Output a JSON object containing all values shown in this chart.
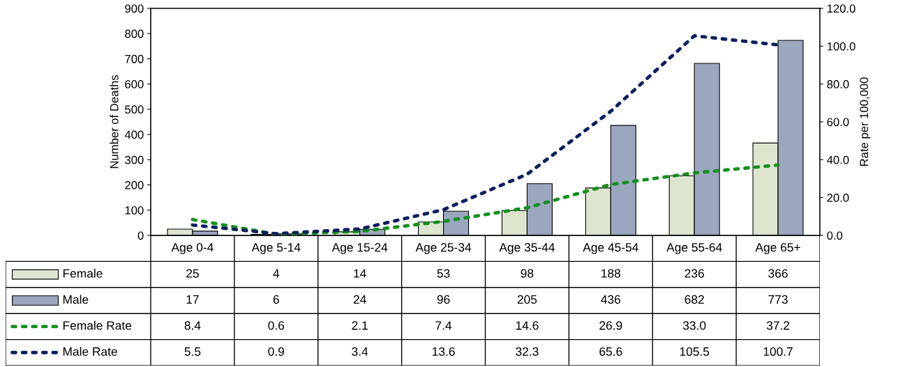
{
  "chart_data": {
    "type": "bar",
    "categories": [
      "Age 0-4",
      "Age 5-14",
      "Age 15-24",
      "Age 25-34",
      "Age 35-44",
      "Age 45-54",
      "Age 55-64",
      "Age 65+"
    ],
    "ylabel": "Number of Deaths",
    "y2label": "Rate per 100,000",
    "ylim": [
      0,
      900
    ],
    "yticks": [
      0,
      100,
      200,
      300,
      400,
      500,
      600,
      700,
      800,
      900
    ],
    "y2lim": [
      0,
      120
    ],
    "y2ticks": [
      {
        "value": 0,
        "label": "0.0"
      },
      {
        "value": 20,
        "label": "20.0"
      },
      {
        "value": 40,
        "label": "40.0"
      },
      {
        "value": 60,
        "label": "60.0"
      },
      {
        "value": 80,
        "label": "80.0"
      },
      {
        "value": 100,
        "label": "100.0"
      },
      {
        "value": 120,
        "label": "120.0"
      }
    ],
    "data_labels": true,
    "grid": false,
    "legend": "left",
    "line_style": "dotted",
    "marker": "none",
    "series": [
      {
        "name": "Female",
        "color": "#dde5cf",
        "values": [
          25,
          4,
          14,
          53,
          98,
          188,
          236,
          366
        ],
        "value_labels": [
          "25",
          "4",
          "14",
          "53",
          "98",
          "188",
          "236",
          "366"
        ]
      },
      {
        "name": "Male",
        "color": "#9ba7bf",
        "values": [
          17,
          6,
          24,
          96,
          205,
          436,
          682,
          773
        ],
        "value_labels": [
          "17",
          "6",
          "24",
          "96",
          "205",
          "436",
          "682",
          "773"
        ]
      },
      {
        "name": "Female Rate",
        "type": "line",
        "axis": "y2",
        "color": "#12901e",
        "values": [
          8.4,
          0.6,
          2.1,
          7.4,
          14.6,
          26.9,
          33.0,
          37.2
        ],
        "value_labels": [
          "8.4",
          "0.6",
          "2.1",
          "7.4",
          "14.6",
          "26.9",
          "33.0",
          "37.2"
        ]
      },
      {
        "name": "Male Rate",
        "type": "line",
        "axis": "y2",
        "color": "#0b1f5e",
        "values": [
          5.5,
          0.9,
          3.4,
          13.6,
          32.3,
          65.6,
          105.5,
          100.7
        ],
        "value_labels": [
          "5.5",
          "0.9",
          "3.4",
          "13.6",
          "32.3",
          "65.6",
          "105.5",
          "100.7"
        ]
      }
    ]
  }
}
